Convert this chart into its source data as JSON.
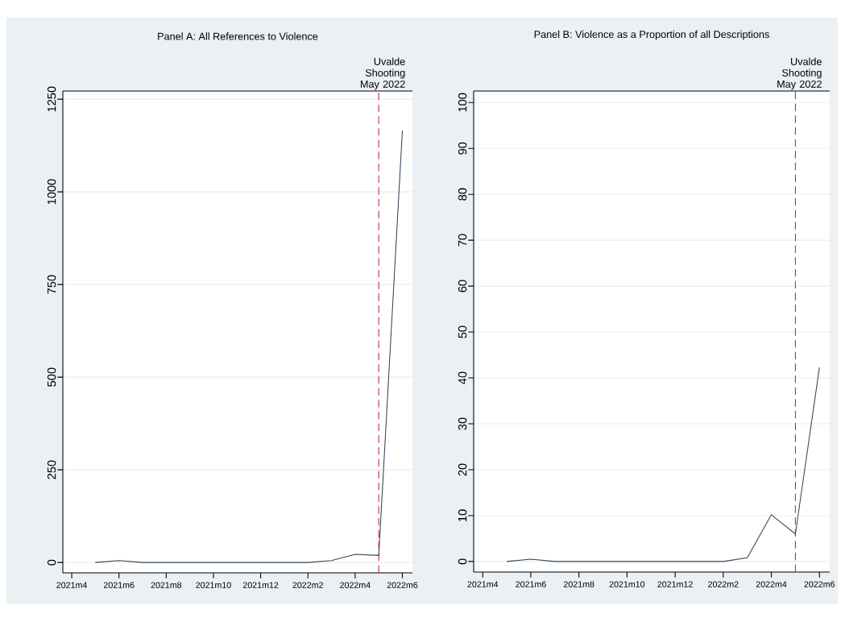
{
  "chart_data": [
    {
      "type": "line",
      "title": "Panel A: All References to Violence",
      "color": "#33475b",
      "grid": "y",
      "x": [
        "2021-05",
        "2021-06",
        "2021-07",
        "2021-08",
        "2021-09",
        "2021-10",
        "2021-11",
        "2021-12",
        "2022-01",
        "2022-02",
        "2022-03",
        "2022-04",
        "2022-05",
        "2022-06"
      ],
      "values": [
        0,
        5,
        0,
        0,
        0,
        0,
        0,
        0,
        0,
        0,
        5,
        22,
        19,
        1165
      ],
      "xlim": [
        "2021-03-20",
        "2022-06-14"
      ],
      "ylim": [
        -28,
        1272
      ],
      "xticks": [
        {
          "value": "2021-04",
          "label": "2021m4"
        },
        {
          "value": "2021-06",
          "label": "2021m6"
        },
        {
          "value": "2021-08",
          "label": "2021m8"
        },
        {
          "value": "2021-10",
          "label": "2021m10"
        },
        {
          "value": "2021-12",
          "label": "2021m12"
        },
        {
          "value": "2022-02",
          "label": "2022m2"
        },
        {
          "value": "2022-04",
          "label": "2022m4"
        },
        {
          "value": "2022-06",
          "label": "2022m6"
        }
      ],
      "yticks": [
        0,
        250,
        500,
        750,
        1000,
        1250
      ],
      "ref_lines": [
        {
          "axis": "x",
          "value": "2022-05",
          "label": "Uvalde Shooting May 2022",
          "color": "#c0283a",
          "line_style": "dashed"
        }
      ]
    },
    {
      "type": "line",
      "title": "Panel B: Violence as a Proportion of all Descriptions",
      "color": "#33475b",
      "grid": "y",
      "x": [
        "2021-05",
        "2021-06",
        "2021-07",
        "2021-08",
        "2021-09",
        "2021-10",
        "2021-11",
        "2021-12",
        "2022-01",
        "2022-02",
        "2022-03",
        "2022-04",
        "2022-05",
        "2022-06"
      ],
      "values": [
        0,
        0.5,
        0,
        0,
        0,
        0,
        0,
        0,
        0,
        0,
        0.8,
        10.2,
        6,
        42.3
      ],
      "xlim": [
        "2021-03-20",
        "2022-06-14"
      ],
      "ylim": [
        -2.3,
        102.5
      ],
      "xticks": [
        {
          "value": "2021-04",
          "label": "2021m4"
        },
        {
          "value": "2021-06",
          "label": "2021m6"
        },
        {
          "value": "2021-08",
          "label": "2021m8"
        },
        {
          "value": "2021-10",
          "label": "2021m10"
        },
        {
          "value": "2021-12",
          "label": "2021m12"
        },
        {
          "value": "2022-02",
          "label": "2022m2"
        },
        {
          "value": "2022-04",
          "label": "2022m4"
        },
        {
          "value": "2022-06",
          "label": "2022m6"
        }
      ],
      "yticks": [
        0,
        10,
        20,
        30,
        40,
        50,
        60,
        70,
        80,
        90,
        100
      ],
      "ref_lines": [
        {
          "axis": "x",
          "value": "2022-05",
          "label": "Uvalde Shooting May 2022",
          "color": "#c0283a",
          "line_style": "dashed"
        }
      ]
    }
  ]
}
